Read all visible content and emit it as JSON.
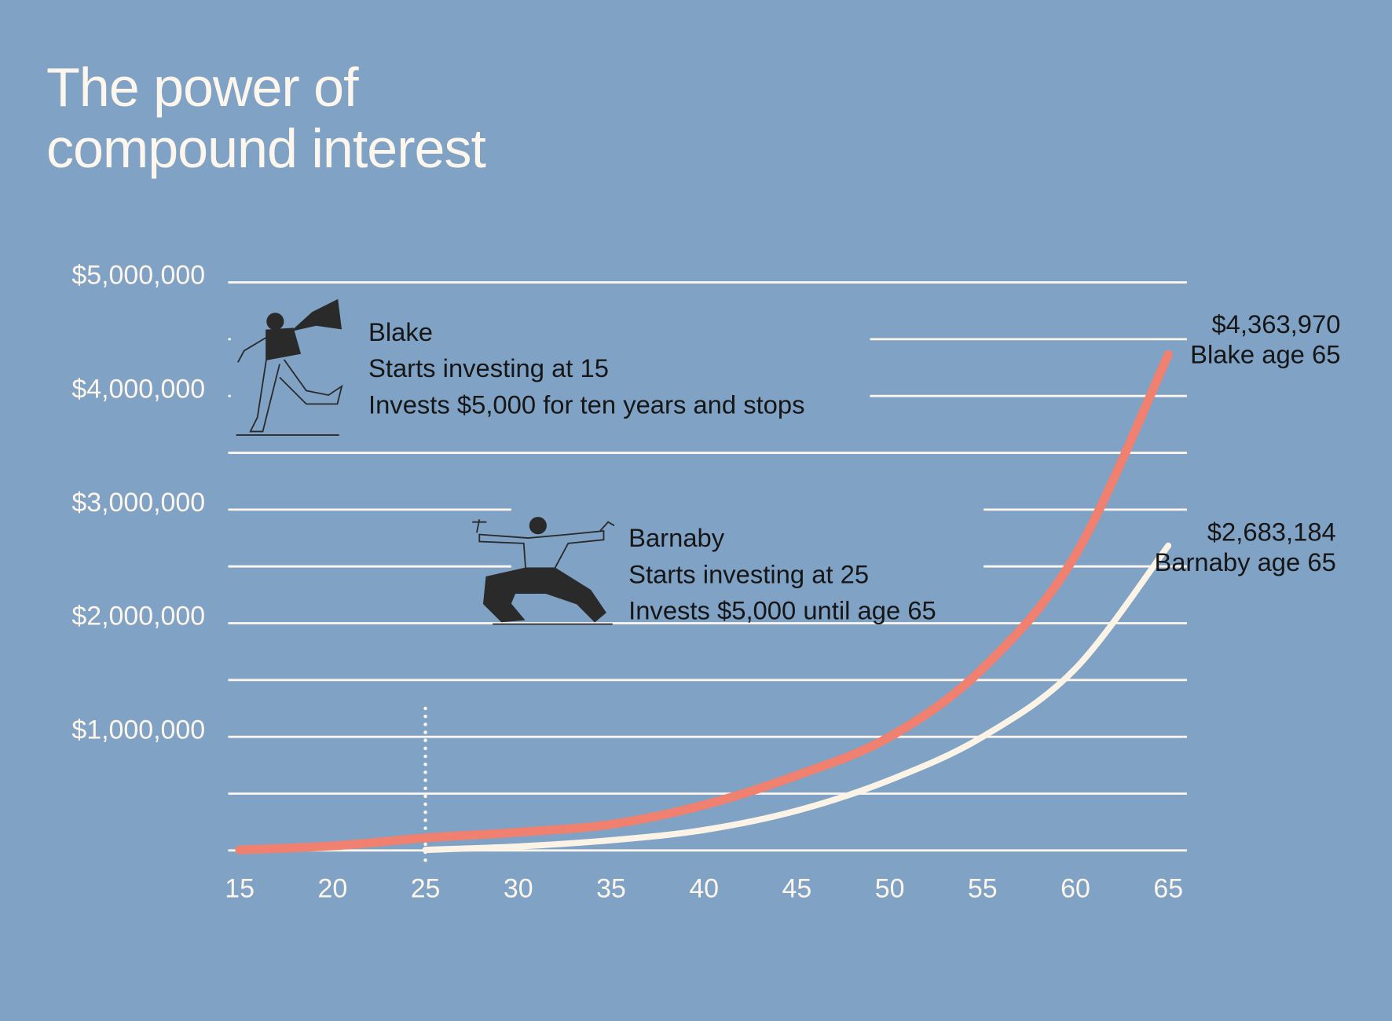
{
  "chart_data": {
    "type": "line",
    "title": "The power of compound interest",
    "x": [
      15,
      20,
      25,
      30,
      35,
      40,
      45,
      50,
      55,
      60,
      65
    ],
    "xlim": [
      15,
      65
    ],
    "xticks": [
      15,
      20,
      25,
      30,
      35,
      40,
      45,
      50,
      55,
      60,
      65
    ],
    "ylim": [
      0,
      5000000
    ],
    "yticks": [
      {
        "value": 1000000,
        "label": "$1,000,000"
      },
      {
        "value": 2000000,
        "label": "$2,000,000"
      },
      {
        "value": 3000000,
        "label": "$3,000,000"
      },
      {
        "value": 4000000,
        "label": "$4,000,000"
      },
      {
        "value": 5000000,
        "label": "$5,000,000"
      }
    ],
    "ygrid": [
      0,
      500000,
      1000000,
      1500000,
      2000000,
      2500000,
      3000000,
      3500000,
      4000000,
      4500000,
      5000000
    ],
    "grid": true,
    "marker_x": 25,
    "series": [
      {
        "name": "Blake",
        "color": "#f0806f",
        "values": [
          5000,
          40000,
          110000,
          160000,
          230000,
          400000,
          660000,
          1000000,
          1600000,
          2600000,
          4363970
        ],
        "value_labels": [
          null,
          null,
          null,
          null,
          null,
          null,
          null,
          null,
          null,
          null,
          "$4,363,970"
        ],
        "end_note": "Blake age 65",
        "notes": [
          "Starts investing at 15",
          "Invests $5,000 for ten years and stops"
        ]
      },
      {
        "name": "Barnaby",
        "color": "#fbf3e6",
        "values": [
          null,
          null,
          5000,
          35000,
          90000,
          180000,
          350000,
          620000,
          1000000,
          1600000,
          2683184
        ],
        "value_labels": [
          null,
          null,
          null,
          null,
          null,
          null,
          null,
          null,
          null,
          null,
          "$2,683,184"
        ],
        "end_note": "Barnaby age 65",
        "notes": [
          "Starts investing at 25",
          "Invests $5,000 until age 65"
        ]
      }
    ]
  }
}
